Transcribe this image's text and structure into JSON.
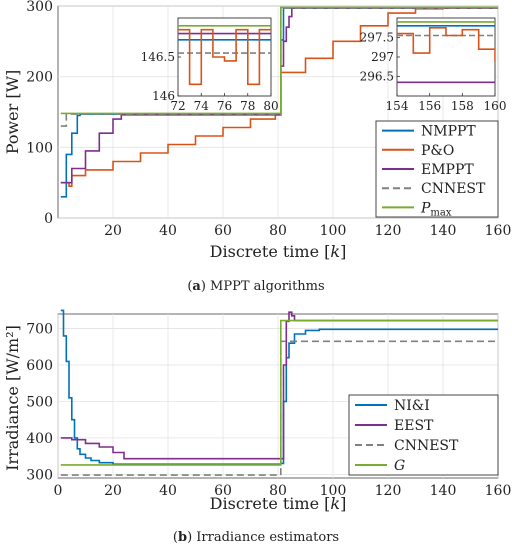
{
  "chart_data": [
    {
      "type": "line",
      "caption_label": "a",
      "caption_text": "MPPT algorithms",
      "xlabel": "Discrete time [k]",
      "ylabel": "Power [W]",
      "xlim": [
        0,
        160
      ],
      "ylim": [
        0,
        300
      ],
      "xticks": [
        "20",
        "40",
        "60",
        "80",
        "100",
        "120",
        "140",
        "160"
      ],
      "yticks": [
        "0",
        "100",
        "200",
        "300"
      ],
      "legend": [
        "NMPPT",
        "P&O",
        "EMPPT",
        "CNNEST",
        "Pmax"
      ],
      "legend_placement": "bottom-right",
      "grid": true,
      "series": [
        {
          "name": "NMPPT",
          "color": "#0072BD",
          "style": "solid",
          "points": [
            [
              1,
              30
            ],
            [
              3,
              90
            ],
            [
              5,
              120
            ],
            [
              7,
              145
            ],
            [
              8,
              147
            ],
            [
              80,
              147
            ],
            [
              81,
              252
            ],
            [
              82,
              297
            ],
            [
              160,
              297
            ]
          ]
        },
        {
          "name": "P&O",
          "color": "#D95319",
          "style": "solid",
          "points": [
            [
              1,
              50
            ],
            [
              4,
              45
            ],
            [
              5,
              60
            ],
            [
              10,
              68
            ],
            [
              20,
              80
            ],
            [
              30,
              92
            ],
            [
              40,
              104
            ],
            [
              50,
              116
            ],
            [
              60,
              128
            ],
            [
              70,
              140
            ],
            [
              79,
              146
            ],
            [
              80,
              146
            ],
            [
              81,
              206
            ],
            [
              90,
              226
            ],
            [
              100,
              250
            ],
            [
              110,
              272
            ],
            [
              120,
              290
            ],
            [
              130,
              296
            ],
            [
              140,
              297
            ],
            [
              160,
              297
            ]
          ]
        },
        {
          "name": "EMPPT",
          "color": "#7E2F8E",
          "style": "solid",
          "points": [
            [
              1,
              50
            ],
            [
              5,
              70
            ],
            [
              10,
              95
            ],
            [
              15,
              120
            ],
            [
              20,
              140
            ],
            [
              23,
              146
            ],
            [
              80,
              146
            ],
            [
              81,
              215
            ],
            [
              82,
              250
            ],
            [
              83,
              270
            ],
            [
              84,
              285
            ],
            [
              85,
              297
            ],
            [
              160,
              297
            ]
          ]
        },
        {
          "name": "CNNEST",
          "color": "#808080",
          "style": "dashed",
          "points": [
            [
              1,
              130
            ],
            [
              3,
              147
            ],
            [
              80,
              147
            ],
            [
              81,
              297
            ],
            [
              160,
              297
            ]
          ]
        },
        {
          "name": "Pmax",
          "color": "#77AC30",
          "style": "solid",
          "points": [
            [
              1,
              148
            ],
            [
              80,
              148
            ],
            [
              81,
              298
            ],
            [
              160,
              298
            ]
          ]
        }
      ],
      "insets": [
        {
          "xlim": [
            72,
            80
          ],
          "ylim": [
            146,
            147
          ],
          "xticks": [
            "72",
            "74",
            "76",
            "78",
            "80"
          ],
          "yticks": [
            "146",
            "146.5"
          ],
          "series": [
            {
              "name": "P&O",
              "points": [
                [
                  72,
                  146.85
                ],
                [
                  73,
                  146.85
                ],
                [
                  73,
                  146.15
                ],
                [
                  74,
                  146.15
                ],
                [
                  74,
                  146.85
                ],
                [
                  75,
                  146.85
                ],
                [
                  75,
                  146.5
                ],
                [
                  76,
                  146.5
                ],
                [
                  76,
                  146.45
                ],
                [
                  77,
                  146.45
                ],
                [
                  77,
                  146.85
                ],
                [
                  78,
                  146.85
                ],
                [
                  78,
                  146.15
                ],
                [
                  79,
                  146.15
                ],
                [
                  79,
                  146.85
                ],
                [
                  80,
                  146.85
                ]
              ]
            },
            {
              "name": "NMPPT",
              "points": [
                [
                  72,
                  146.72
                ],
                [
                  80,
                  146.72
                ]
              ]
            },
            {
              "name": "CNNEST",
              "points": [
                [
                  72,
                  146.55
                ],
                [
                  80,
                  146.55
                ]
              ]
            },
            {
              "name": "EMPPT",
              "points": [
                [
                  72,
                  146.8
                ],
                [
                  80,
                  146.8
                ]
              ]
            },
            {
              "name": "Pmax",
              "points": [
                [
                  72,
                  146.9
                ],
                [
                  80,
                  146.9
                ]
              ]
            }
          ]
        },
        {
          "xlim": [
            154,
            160
          ],
          "ylim": [
            296,
            298
          ],
          "xticks": [
            "154",
            "156",
            "158",
            "160"
          ],
          "yticks": [
            "296.5",
            "297",
            "297.5"
          ],
          "series": [
            {
              "name": "P&O",
              "points": [
                [
                  154,
                  297.6
                ],
                [
                  155,
                  297.6
                ],
                [
                  155,
                  297.1
                ],
                [
                  156,
                  297.1
                ],
                [
                  156,
                  297.75
                ],
                [
                  157,
                  297.75
                ],
                [
                  157,
                  297.55
                ],
                [
                  158,
                  297.55
                ],
                [
                  158,
                  297.7
                ],
                [
                  159,
                  297.7
                ],
                [
                  159,
                  297.2
                ],
                [
                  160,
                  297.2
                ],
                [
                  160,
                  296.9
                ]
              ]
            },
            {
              "name": "NMPPT",
              "points": [
                [
                  154,
                  297.8
                ],
                [
                  160,
                  297.8
                ]
              ]
            },
            {
              "name": "CNNEST",
              "points": [
                [
                  154,
                  297.55
                ],
                [
                  160,
                  297.55
                ]
              ]
            },
            {
              "name": "EMPPT",
              "points": [
                [
                  154,
                  296.35
                ],
                [
                  160,
                  296.35
                ]
              ]
            },
            {
              "name": "Pmax",
              "points": [
                [
                  154,
                  297.9
                ],
                [
                  160,
                  297.9
                ]
              ]
            }
          ]
        }
      ]
    },
    {
      "type": "line",
      "caption_label": "b",
      "caption_text": "Irradiance estimators",
      "xlabel": "Discrete time [k]",
      "ylabel": "Irradiance [W/m²]",
      "xlim": [
        0,
        160
      ],
      "ylim": [
        290,
        740
      ],
      "xticks": [
        "0",
        "20",
        "40",
        "60",
        "80",
        "100",
        "120",
        "140",
        "160"
      ],
      "yticks": [
        "300",
        "400",
        "500",
        "600",
        "700"
      ],
      "legend": [
        "NI&I",
        "EEST",
        "CNNEST",
        "G"
      ],
      "legend_placement": "bottom-right",
      "grid": true,
      "series": [
        {
          "name": "NI&I",
          "color": "#0072BD",
          "style": "solid",
          "points": [
            [
              1,
              750
            ],
            [
              2,
              680
            ],
            [
              3,
              610
            ],
            [
              4,
              510
            ],
            [
              5,
              450
            ],
            [
              6,
              400
            ],
            [
              7,
              370
            ],
            [
              8,
              355
            ],
            [
              10,
              345
            ],
            [
              12,
              338
            ],
            [
              15,
              332
            ],
            [
              20,
              328
            ],
            [
              80,
              328
            ],
            [
              81,
              330
            ],
            [
              82,
              500
            ],
            [
              83,
              620
            ],
            [
              84,
              660
            ],
            [
              86,
              685
            ],
            [
              90,
              695
            ],
            [
              95,
              698
            ],
            [
              160,
              698
            ]
          ]
        },
        {
          "name": "EEST",
          "color": "#7E2F8E",
          "style": "solid",
          "points": [
            [
              1,
              400
            ],
            [
              3,
              400
            ],
            [
              5,
              395
            ],
            [
              10,
              385
            ],
            [
              15,
              375
            ],
            [
              20,
              360
            ],
            [
              24,
              343
            ],
            [
              80,
              343
            ],
            [
              81,
              343
            ],
            [
              82,
              600
            ],
            [
              83,
              720
            ],
            [
              84,
              745
            ],
            [
              85,
              735
            ],
            [
              86,
              722
            ],
            [
              160,
              722
            ]
          ]
        },
        {
          "name": "CNNEST",
          "color": "#808080",
          "style": "dashed",
          "points": [
            [
              1,
              298
            ],
            [
              80,
              298
            ],
            [
              81,
              665
            ],
            [
              160,
              665
            ]
          ]
        },
        {
          "name": "G",
          "color": "#77AC30",
          "style": "solid",
          "points": [
            [
              1,
              326
            ],
            [
              80,
              326
            ],
            [
              81,
              722
            ],
            [
              160,
              722
            ]
          ]
        }
      ]
    }
  ]
}
